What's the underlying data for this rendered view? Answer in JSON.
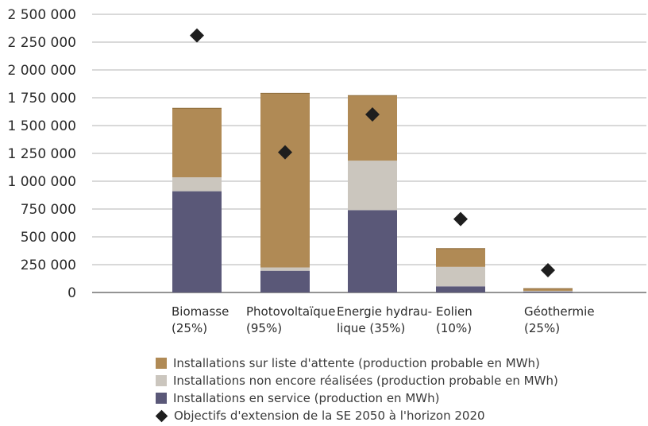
{
  "chart_data": {
    "type": "bar",
    "stacked": true,
    "categories": [
      [
        "Biomasse",
        "(25%)"
      ],
      [
        "Photovoltaïque",
        "(95%)"
      ],
      [
        "Energie hydrau-",
        "lique (35%)"
      ],
      [
        "Eolien",
        "(10%)"
      ],
      [
        "Géothermie",
        "(25%)"
      ]
    ],
    "series": [
      {
        "name": "Installations en service (production en MWh)",
        "color": "#5a5878",
        "values": [
          910000,
          195000,
          740000,
          55000,
          8000
        ]
      },
      {
        "name": "Installations non encore réalisées (production probable en MWh)",
        "color": "#cbc6be",
        "values": [
          125000,
          30000,
          445000,
          175000,
          7000
        ]
      },
      {
        "name": "Installations sur liste d'attente (production probable en MWh)",
        "color": "#b08a55",
        "values": [
          620000,
          1565000,
          585000,
          165000,
          20000
        ]
      }
    ],
    "targets": {
      "name": "Objectifs d'extension de la SE 2050 à l'horizon 2020",
      "color": "#1e1e1e",
      "values": [
        2310000,
        1260000,
        1600000,
        660000,
        200000
      ]
    },
    "yticks": [
      "2 500 000",
      "2 250 000",
      "2 000 000",
      "1 750 000",
      "1 500 000",
      "1 250 000",
      "1 000 000",
      "750 000",
      "500 000",
      "250 000",
      "0"
    ],
    "ytick_values": [
      2500000,
      2250000,
      2000000,
      1750000,
      1500000,
      1250000,
      1000000,
      750000,
      500000,
      250000,
      0
    ],
    "ylim": [
      0,
      2500000
    ],
    "grid": true,
    "legend_order": [
      2,
      1,
      0
    ],
    "legend_position": "bottom"
  }
}
